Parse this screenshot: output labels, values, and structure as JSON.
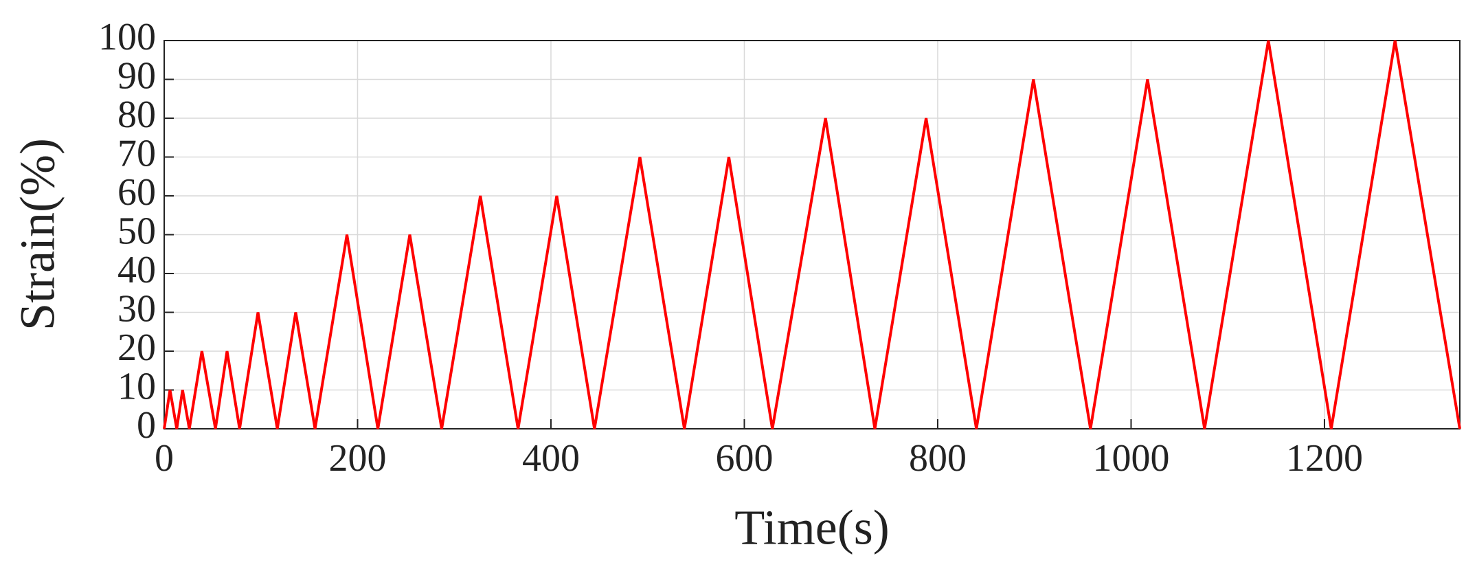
{
  "chart_data": {
    "type": "line",
    "x_label": "Time(s)",
    "y_label": "Strain(%)",
    "x": [
      0,
      6,
      13,
      19,
      26,
      39,
      53,
      65,
      78,
      97,
      117,
      136,
      156,
      189,
      221,
      254,
      287,
      327,
      366,
      406,
      445,
      492,
      538,
      584,
      629,
      684,
      735,
      788,
      840,
      899,
      958,
      1017,
      1076,
      1142,
      1207,
      1273,
      1340
    ],
    "values": [
      0,
      10,
      0,
      10,
      0,
      20,
      0,
      20,
      0,
      30,
      0,
      30,
      0,
      50,
      0,
      50,
      0,
      60,
      0,
      60,
      0,
      70,
      0,
      70,
      0,
      80,
      0,
      80,
      0,
      90,
      0,
      90,
      0,
      100,
      0,
      100,
      0
    ],
    "color": "#ff0000",
    "xlim": [
      0,
      1340
    ],
    "xticks": [
      0,
      200,
      400,
      600,
      800,
      1000,
      1200
    ],
    "ylim": [
      0,
      100
    ],
    "yticks": [
      0,
      10,
      20,
      30,
      40,
      50,
      60,
      70,
      80,
      90,
      100
    ],
    "grid": true
  }
}
